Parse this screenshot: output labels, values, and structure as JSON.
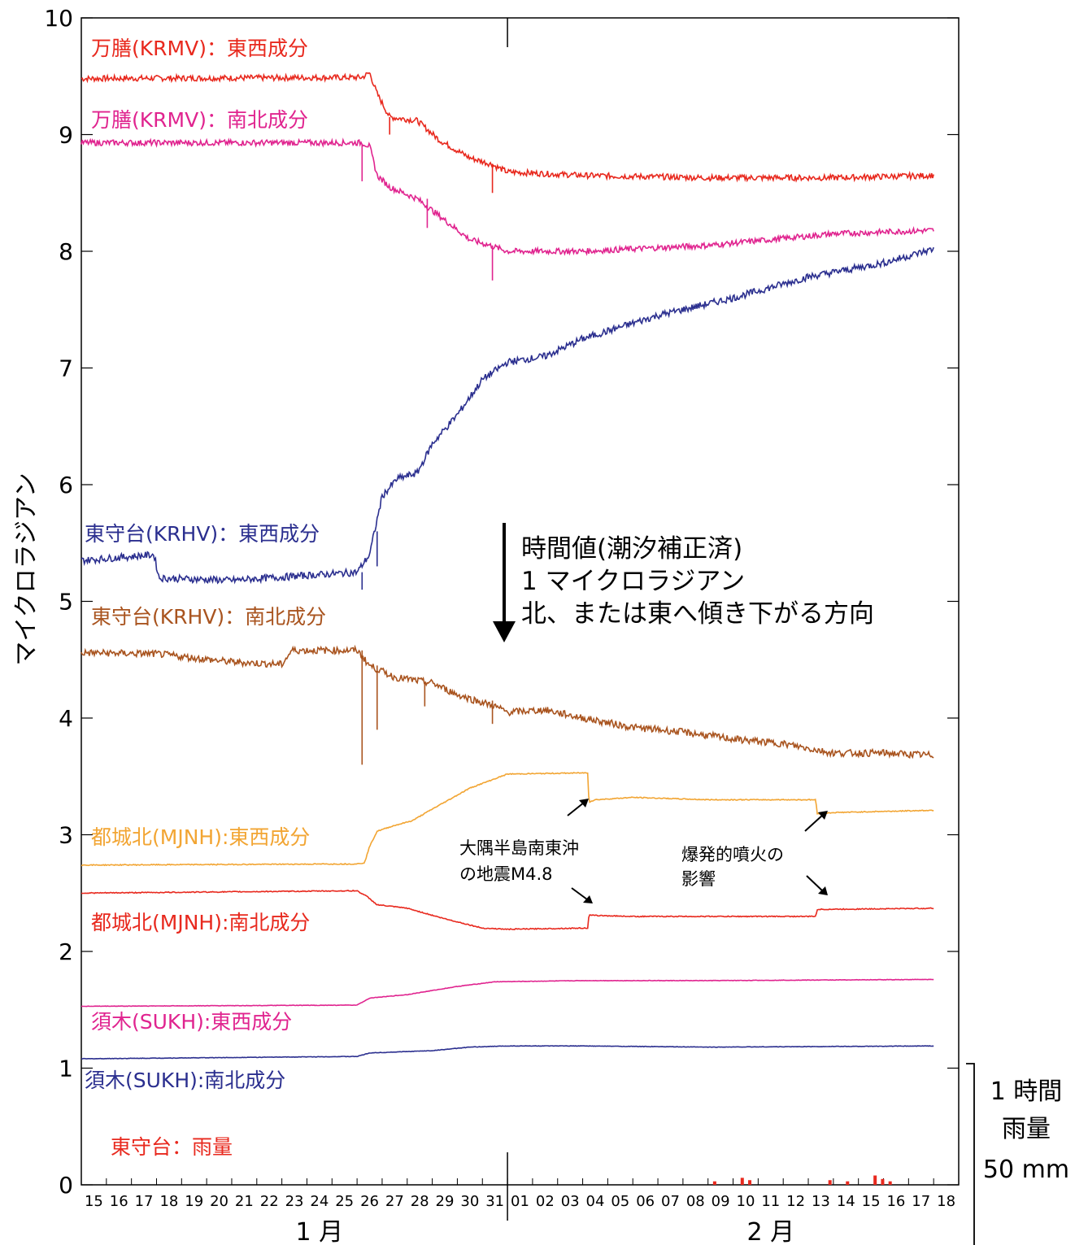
{
  "chart_data": {
    "type": "line",
    "ylabel": "マイクロラジアン",
    "ylim": [
      0,
      10
    ],
    "y_ticks": [
      "0",
      "1",
      "2",
      "3",
      "4",
      "5",
      "6",
      "7",
      "8",
      "9",
      "10"
    ],
    "grid": false,
    "x_day_labels": [
      "15",
      "16",
      "17",
      "18",
      "19",
      "20",
      "21",
      "22",
      "23",
      "24",
      "25",
      "26",
      "27",
      "28",
      "29",
      "30",
      "31",
      "01",
      "02",
      "03",
      "04",
      "05",
      "06",
      "07",
      "08",
      "09",
      "10",
      "11",
      "12",
      "13",
      "14",
      "15",
      "16",
      "17",
      "18"
    ],
    "month_labels": [
      "1 月",
      "2 月"
    ],
    "x_range": [
      "01-15",
      "02-18"
    ],
    "series": [
      {
        "name": "万膳(KRMV)：東西成分",
        "color": "#e8291e",
        "points": [
          [
            0,
            9.48
          ],
          [
            11.2,
            9.49
          ],
          [
            11.5,
            9.53
          ],
          [
            11.8,
            9.35
          ],
          [
            12.3,
            9.15
          ],
          [
            13.4,
            9.12
          ],
          [
            14.3,
            8.95
          ],
          [
            15.5,
            8.8
          ],
          [
            16.3,
            8.75
          ],
          [
            17.0,
            8.68
          ],
          [
            20.0,
            8.65
          ],
          [
            25.0,
            8.63
          ],
          [
            30.0,
            8.63
          ],
          [
            34.0,
            8.65
          ]
        ]
      },
      {
        "name": "万膳(KRMV)：南北成分",
        "color": "#e0248f",
        "points": [
          [
            0,
            8.93
          ],
          [
            11.2,
            8.93
          ],
          [
            11.5,
            8.9
          ],
          [
            11.8,
            8.65
          ],
          [
            12.3,
            8.55
          ],
          [
            13.4,
            8.45
          ],
          [
            14.3,
            8.3
          ],
          [
            15.5,
            8.1
          ],
          [
            16.3,
            8.05
          ],
          [
            17.0,
            8.0
          ],
          [
            20.0,
            8.0
          ],
          [
            25.0,
            8.05
          ],
          [
            30.0,
            8.15
          ],
          [
            34.0,
            8.18
          ]
        ]
      },
      {
        "name": "東守台(KRHV)：東西成分",
        "color": "#2b2f8f",
        "points": [
          [
            0,
            5.35
          ],
          [
            2.9,
            5.4
          ],
          [
            3.1,
            5.2
          ],
          [
            6.0,
            5.18
          ],
          [
            11.0,
            5.25
          ],
          [
            11.5,
            5.4
          ],
          [
            12.0,
            5.9
          ],
          [
            12.6,
            6.05
          ],
          [
            13.4,
            6.1
          ],
          [
            14.0,
            6.35
          ],
          [
            15.0,
            6.6
          ],
          [
            16.0,
            6.9
          ],
          [
            17.0,
            7.05
          ],
          [
            18.5,
            7.1
          ],
          [
            20.0,
            7.25
          ],
          [
            23.0,
            7.45
          ],
          [
            26.0,
            7.6
          ],
          [
            29.0,
            7.78
          ],
          [
            32.0,
            7.9
          ],
          [
            34.0,
            8.02
          ]
        ]
      },
      {
        "name": "東守台(KRHV)：南北成分",
        "color": "#a9541f",
        "points": [
          [
            0,
            4.56
          ],
          [
            3.0,
            4.55
          ],
          [
            6.0,
            4.48
          ],
          [
            8.0,
            4.46
          ],
          [
            8.4,
            4.58
          ],
          [
            11.0,
            4.58
          ],
          [
            11.5,
            4.45
          ],
          [
            12.5,
            4.35
          ],
          [
            14.0,
            4.3
          ],
          [
            15.0,
            4.2
          ],
          [
            16.5,
            4.1
          ],
          [
            17.0,
            4.05
          ],
          [
            18.5,
            4.07
          ],
          [
            20.0,
            4.0
          ],
          [
            22.0,
            3.92
          ],
          [
            24.0,
            3.88
          ],
          [
            26.0,
            3.82
          ],
          [
            28.0,
            3.78
          ],
          [
            30.0,
            3.7
          ],
          [
            32.0,
            3.7
          ],
          [
            34.0,
            3.68
          ]
        ]
      },
      {
        "name": "都城北(MJNH):東西成分",
        "color": "#f2a533",
        "points": [
          [
            0,
            2.74
          ],
          [
            11.0,
            2.75
          ],
          [
            11.3,
            2.76
          ],
          [
            11.5,
            2.9
          ],
          [
            11.8,
            3.03
          ],
          [
            12.5,
            3.08
          ],
          [
            13.2,
            3.12
          ],
          [
            14.0,
            3.22
          ],
          [
            15.5,
            3.4
          ],
          [
            17.0,
            3.52
          ],
          [
            20.0,
            3.53
          ],
          [
            20.2,
            3.53
          ],
          [
            20.25,
            3.28
          ],
          [
            20.5,
            3.3
          ],
          [
            22.0,
            3.32
          ],
          [
            25.0,
            3.3
          ],
          [
            29.0,
            3.3
          ],
          [
            29.3,
            3.3
          ],
          [
            29.35,
            3.18
          ],
          [
            30.0,
            3.19
          ],
          [
            34.0,
            3.21
          ]
        ]
      },
      {
        "name": "都城北(MJNH):南北成分",
        "color": "#e8291e",
        "points": [
          [
            0,
            2.5
          ],
          [
            11.0,
            2.52
          ],
          [
            11.4,
            2.47
          ],
          [
            11.8,
            2.4
          ],
          [
            13.0,
            2.37
          ],
          [
            14.5,
            2.28
          ],
          [
            16.0,
            2.2
          ],
          [
            17.0,
            2.19
          ],
          [
            20.0,
            2.2
          ],
          [
            20.2,
            2.2
          ],
          [
            20.25,
            2.31
          ],
          [
            22.0,
            2.3
          ],
          [
            26.0,
            2.3
          ],
          [
            29.3,
            2.3
          ],
          [
            29.35,
            2.36
          ],
          [
            34.0,
            2.37
          ]
        ]
      },
      {
        "name": "須木(SUKH):東西成分",
        "color": "#e0248f",
        "points": [
          [
            0,
            1.53
          ],
          [
            11.0,
            1.54
          ],
          [
            11.5,
            1.6
          ],
          [
            13.0,
            1.63
          ],
          [
            15.0,
            1.7
          ],
          [
            16.5,
            1.74
          ],
          [
            20.0,
            1.75
          ],
          [
            25.0,
            1.75
          ],
          [
            34.0,
            1.76
          ]
        ]
      },
      {
        "name": "須木(SUKH):南北成分",
        "color": "#2b2f8f",
        "points": [
          [
            0,
            1.08
          ],
          [
            11.0,
            1.1
          ],
          [
            11.5,
            1.13
          ],
          [
            14.0,
            1.15
          ],
          [
            15.5,
            1.18
          ],
          [
            17.0,
            1.19
          ],
          [
            20.0,
            1.19
          ],
          [
            25.0,
            1.18
          ],
          [
            34.0,
            1.19
          ]
        ]
      },
      {
        "name": "東守台：雨量",
        "color": "#e8291e",
        "type": "bar",
        "points": [
          [
            25.2,
            0.03
          ],
          [
            26.3,
            0.06
          ],
          [
            26.6,
            0.04
          ],
          [
            29.8,
            0.04
          ],
          [
            30.5,
            0.03
          ],
          [
            31.6,
            0.08
          ],
          [
            31.9,
            0.05
          ],
          [
            32.2,
            0.03
          ]
        ]
      }
    ],
    "annotations": [
      {
        "lines": [
          "時間値(潮汐補正済)",
          "1 マイクロラジアン",
          "北、または東へ傾き下がる方向"
        ]
      },
      {
        "lines": [
          "大隅半島南東沖",
          "の地震M4.8"
        ]
      },
      {
        "lines": [
          "爆発的噴火の",
          "影響"
        ]
      }
    ],
    "rain_scale": {
      "lines": [
        "1 時間",
        "雨量",
        "50 mm"
      ]
    }
  }
}
